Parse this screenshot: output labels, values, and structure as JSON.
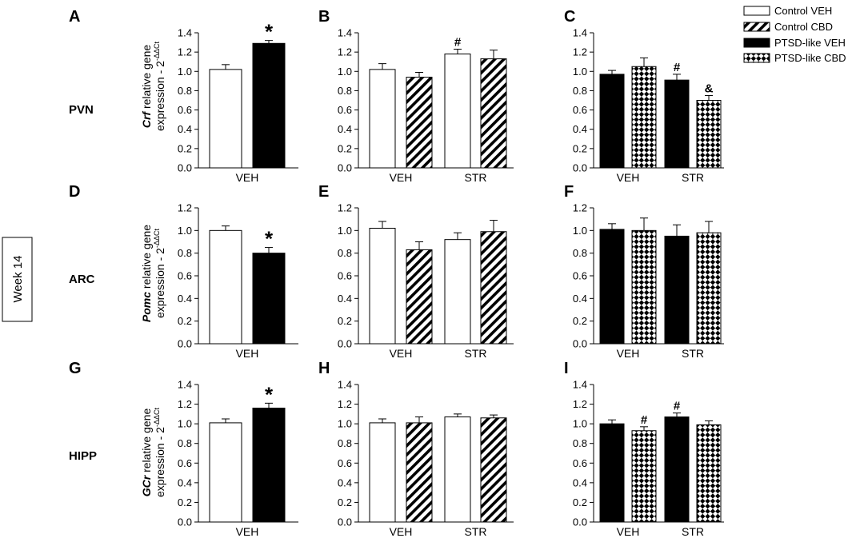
{
  "figure": {
    "side_label": "Week 14",
    "region_labels": [
      "PVN",
      "ARC",
      "HIPP"
    ],
    "legend": [
      {
        "label": "Control VEH",
        "pattern": "white"
      },
      {
        "label": "Control CBD",
        "pattern": "hatch"
      },
      {
        "label": "PTSD-like VEH",
        "pattern": "black"
      },
      {
        "label": "PTSD-like CBD",
        "pattern": "diamond"
      }
    ],
    "ylabels": [
      {
        "gene": "Crf",
        "rest": " relative gene",
        "line2": "expression - 2",
        "sup": "-ΔΔCt"
      },
      {
        "gene": "Pomc",
        "rest": " relative gene",
        "line2": "expression - 2",
        "sup": "-ΔΔCt"
      },
      {
        "gene": "GCr",
        "rest": " relative gene",
        "line2": "expression - 2",
        "sup": "-ΔΔCt"
      }
    ]
  },
  "chart_data": [
    {
      "panel": "A",
      "type": "bar",
      "categories": [
        "VEH"
      ],
      "ylim": [
        0,
        1.4
      ],
      "yticks": [
        "0.0",
        "0.2",
        "0.4",
        "0.6",
        "0.8",
        "1.0",
        "1.2",
        "1.4"
      ],
      "bars": [
        {
          "value": 1.02,
          "err": 0.05,
          "pattern": "white"
        },
        {
          "value": 1.29,
          "err": 0.03,
          "pattern": "black",
          "mark": "*"
        }
      ]
    },
    {
      "panel": "B",
      "type": "bar",
      "categories": [
        "VEH",
        "STR"
      ],
      "ylim": [
        0,
        1.4
      ],
      "yticks": [
        "0.0",
        "0.2",
        "0.4",
        "0.6",
        "0.8",
        "1.0",
        "1.2",
        "1.4"
      ],
      "bars": [
        {
          "value": 1.02,
          "err": 0.06,
          "pattern": "white"
        },
        {
          "value": 0.94,
          "err": 0.05,
          "pattern": "hatch"
        },
        {
          "value": 1.18,
          "err": 0.05,
          "pattern": "white",
          "mark": "#"
        },
        {
          "value": 1.13,
          "err": 0.09,
          "pattern": "hatch"
        }
      ]
    },
    {
      "panel": "C",
      "type": "bar",
      "categories": [
        "VEH",
        "STR"
      ],
      "ylim": [
        0,
        1.4
      ],
      "yticks": [
        "0.0",
        "0.2",
        "0.4",
        "0.6",
        "0.8",
        "1.0",
        "1.2",
        "1.4"
      ],
      "bars": [
        {
          "value": 0.97,
          "err": 0.04,
          "pattern": "black"
        },
        {
          "value": 1.05,
          "err": 0.09,
          "pattern": "diamond"
        },
        {
          "value": 0.91,
          "err": 0.06,
          "pattern": "black",
          "mark": "#"
        },
        {
          "value": 0.7,
          "err": 0.05,
          "pattern": "diamond",
          "mark": "&"
        }
      ]
    },
    {
      "panel": "D",
      "type": "bar",
      "categories": [
        "VEH"
      ],
      "ylim": [
        0,
        1.2
      ],
      "yticks": [
        "0.0",
        "0.2",
        "0.4",
        "0.6",
        "0.8",
        "1.0",
        "1.2"
      ],
      "bars": [
        {
          "value": 1.0,
          "err": 0.04,
          "pattern": "white"
        },
        {
          "value": 0.8,
          "err": 0.05,
          "pattern": "black",
          "mark": "*"
        }
      ]
    },
    {
      "panel": "E",
      "type": "bar",
      "categories": [
        "VEH",
        "STR"
      ],
      "ylim": [
        0,
        1.2
      ],
      "yticks": [
        "0.0",
        "0.2",
        "0.4",
        "0.6",
        "0.8",
        "1.0",
        "1.2"
      ],
      "bars": [
        {
          "value": 1.02,
          "err": 0.06,
          "pattern": "white"
        },
        {
          "value": 0.83,
          "err": 0.07,
          "pattern": "hatch"
        },
        {
          "value": 0.92,
          "err": 0.06,
          "pattern": "white"
        },
        {
          "value": 0.99,
          "err": 0.1,
          "pattern": "hatch"
        }
      ]
    },
    {
      "panel": "F",
      "type": "bar",
      "categories": [
        "VEH",
        "STR"
      ],
      "ylim": [
        0,
        1.2
      ],
      "yticks": [
        "0.0",
        "0.2",
        "0.4",
        "0.6",
        "0.8",
        "1.0",
        "1.2"
      ],
      "bars": [
        {
          "value": 1.01,
          "err": 0.05,
          "pattern": "black"
        },
        {
          "value": 1.0,
          "err": 0.11,
          "pattern": "diamond"
        },
        {
          "value": 0.95,
          "err": 0.1,
          "pattern": "black"
        },
        {
          "value": 0.98,
          "err": 0.1,
          "pattern": "diamond"
        }
      ]
    },
    {
      "panel": "G",
      "type": "bar",
      "categories": [
        "VEH"
      ],
      "ylim": [
        0,
        1.4
      ],
      "yticks": [
        "0.0",
        "0.2",
        "0.4",
        "0.6",
        "0.8",
        "1.0",
        "1.2",
        "1.4"
      ],
      "bars": [
        {
          "value": 1.01,
          "err": 0.04,
          "pattern": "white"
        },
        {
          "value": 1.16,
          "err": 0.05,
          "pattern": "black",
          "mark": "*"
        }
      ]
    },
    {
      "panel": "H",
      "type": "bar",
      "categories": [
        "VEH",
        "STR"
      ],
      "ylim": [
        0,
        1.4
      ],
      "yticks": [
        "0.0",
        "0.2",
        "0.4",
        "0.6",
        "0.8",
        "1.0",
        "1.2",
        "1.4"
      ],
      "bars": [
        {
          "value": 1.01,
          "err": 0.04,
          "pattern": "white"
        },
        {
          "value": 1.01,
          "err": 0.06,
          "pattern": "hatch"
        },
        {
          "value": 1.07,
          "err": 0.03,
          "pattern": "white"
        },
        {
          "value": 1.06,
          "err": 0.03,
          "pattern": "hatch"
        }
      ]
    },
    {
      "panel": "I",
      "type": "bar",
      "categories": [
        "VEH",
        "STR"
      ],
      "ylim": [
        0,
        1.4
      ],
      "yticks": [
        "0.0",
        "0.2",
        "0.4",
        "0.6",
        "0.8",
        "1.0",
        "1.2",
        "1.4"
      ],
      "bars": [
        {
          "value": 1.0,
          "err": 0.04,
          "pattern": "black"
        },
        {
          "value": 0.93,
          "err": 0.04,
          "pattern": "diamond",
          "mark": "#"
        },
        {
          "value": 1.07,
          "err": 0.04,
          "pattern": "black",
          "mark": "#"
        },
        {
          "value": 0.99,
          "err": 0.04,
          "pattern": "diamond"
        }
      ]
    }
  ]
}
